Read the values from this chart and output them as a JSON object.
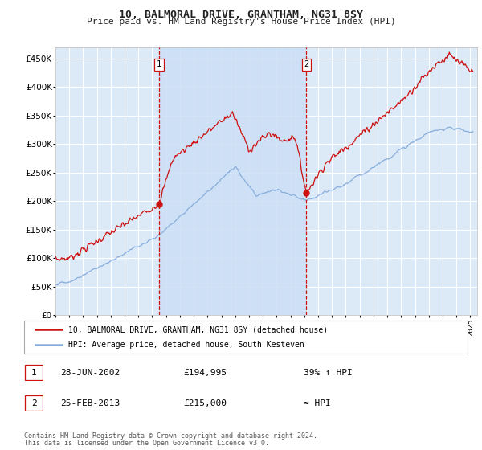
{
  "title": "10, BALMORAL DRIVE, GRANTHAM, NG31 8SY",
  "subtitle": "Price paid vs. HM Land Registry's House Price Index (HPI)",
  "ytick_values": [
    0,
    50000,
    100000,
    150000,
    200000,
    250000,
    300000,
    350000,
    400000,
    450000
  ],
  "ylim": [
    0,
    470000
  ],
  "xlim_start": 1995.0,
  "xlim_end": 2025.5,
  "background_color": "#dce9f7",
  "shade_color": "#ccdff5",
  "grid_color": "#ffffff",
  "transaction1": {
    "date": 2002.49,
    "price": 194995,
    "label": "1"
  },
  "transaction2": {
    "date": 2013.15,
    "price": 215000,
    "label": "2"
  },
  "red_color": "#cc1111",
  "blue_color": "#88aedd",
  "legend_line1": "10, BALMORAL DRIVE, GRANTHAM, NG31 8SY (detached house)",
  "legend_line2": "HPI: Average price, detached house, South Kesteven",
  "footer_line1": "Contains HM Land Registry data © Crown copyright and database right 2024.",
  "footer_line2": "This data is licensed under the Open Government Licence v3.0.",
  "annotation1_date": "28-JUN-2002",
  "annotation1_price": "£194,995",
  "annotation1_hpi": "39% ↑ HPI",
  "annotation2_date": "25-FEB-2013",
  "annotation2_price": "£215,000",
  "annotation2_hpi": "≈ HPI"
}
